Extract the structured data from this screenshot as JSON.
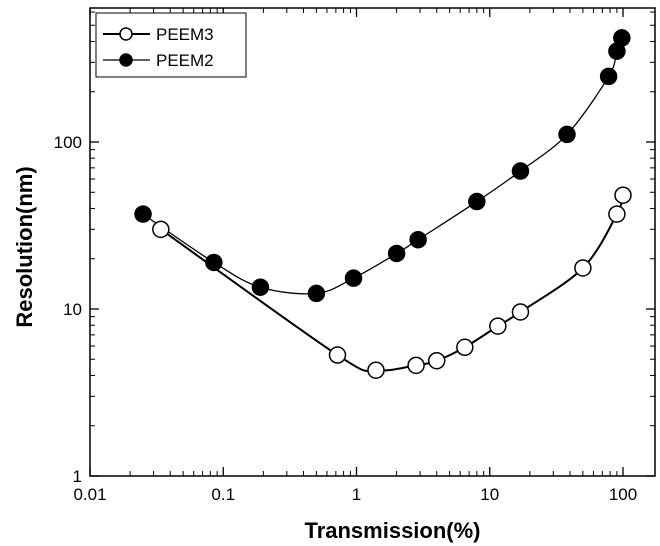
{
  "chart_data": {
    "type": "scatter",
    "title": "",
    "xlabel": "Transmission(%)",
    "ylabel": "Resolution(nm)",
    "x_scale": "log",
    "y_scale": "log",
    "xlim": [
      0.01,
      100
    ],
    "ylim": [
      1,
      600
    ],
    "x_ticks": [
      0.01,
      0.1,
      1,
      10,
      100
    ],
    "x_tick_labels": [
      "0.01",
      "0.1",
      "1",
      "10",
      "100"
    ],
    "y_ticks": [
      1,
      10,
      100
    ],
    "y_tick_labels": [
      "1",
      "10",
      "100"
    ],
    "grid": false,
    "legend_position": "top-left",
    "series": [
      {
        "name": "PEEM3",
        "marker": "open-circle",
        "color": "#000000",
        "x": [
          0.034,
          0.72,
          1.4,
          2.8,
          4.0,
          6.5,
          11.5,
          17,
          50,
          90,
          100
        ],
        "y": [
          30,
          5.3,
          4.3,
          4.6,
          4.9,
          5.9,
          7.9,
          9.6,
          17.6,
          37,
          48
        ]
      },
      {
        "name": "PEEM2",
        "marker": "filled-circle",
        "color": "#000000",
        "x": [
          0.025,
          0.085,
          0.19,
          0.5,
          0.95,
          2.0,
          2.9,
          8.0,
          17,
          38,
          78,
          90,
          98
        ],
        "y": [
          37,
          19,
          13.5,
          12.4,
          15.3,
          21.5,
          26,
          44,
          67,
          111,
          247,
          350,
          420
        ]
      }
    ]
  }
}
